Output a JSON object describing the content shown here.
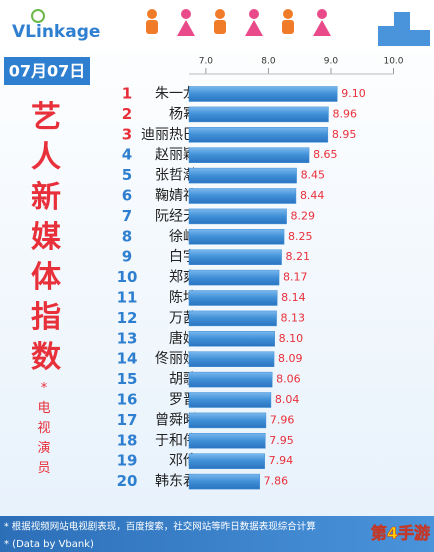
{
  "chart_data": {
    "type": "hbar",
    "logo": "VLinkage",
    "date": "07月07日",
    "title": "艺人新媒体指数",
    "subtitle": "*电视演员",
    "footnotes": [
      "* 根据视频网站电视剧表现，百度搜索，社交网站等昨日数据表现综合计算",
      "* (Data by Vbank)"
    ],
    "watermark": "第4手游",
    "ranks": [
      1,
      2,
      3,
      4,
      5,
      6,
      7,
      8,
      9,
      10,
      11,
      12,
      13,
      14,
      15,
      16,
      17,
      18,
      19,
      20
    ],
    "categories": [
      "朱一龙",
      "杨幂",
      "迪丽热巴",
      "赵丽颖",
      "张哲瀚",
      "鞠婧祎",
      "阮经天",
      "徐峥",
      "白宇",
      "郑爽",
      "陈坤",
      "万茜",
      "唐嫣",
      "佟丽娅",
      "胡歌",
      "罗晋",
      "曾舜晞",
      "于和伟",
      "邓伦",
      "韩东君"
    ],
    "values": [
      9.1,
      8.96,
      8.95,
      8.65,
      8.45,
      8.44,
      8.29,
      8.25,
      8.21,
      8.17,
      8.14,
      8.13,
      8.1,
      8.09,
      8.06,
      8.04,
      7.96,
      7.95,
      7.94,
      7.86
    ],
    "value_labels": [
      "9.10",
      "8.96",
      "8.95",
      "8.65",
      "8.45",
      "8.44",
      "8.29",
      "8.25",
      "8.21",
      "8.17",
      "8.14",
      "8.13",
      "8.10",
      "8.09",
      "8.06",
      "8.04",
      "7.96",
      "7.95",
      "7.94",
      "7.86"
    ],
    "color": "#3f8fd6",
    "label_color": "#e8303a",
    "top_rank_color": "#e8303a",
    "rank_color": "#2f7fd0",
    "top_ranks": 3,
    "xlim": [
      6.73,
      10.0
    ],
    "xticks": [
      {
        "value": 7,
        "label": "7.0"
      },
      {
        "value": 8,
        "label": "8.0"
      },
      {
        "value": 9,
        "label": "9.0"
      },
      {
        "value": 10,
        "label": "10.0"
      }
    ]
  }
}
